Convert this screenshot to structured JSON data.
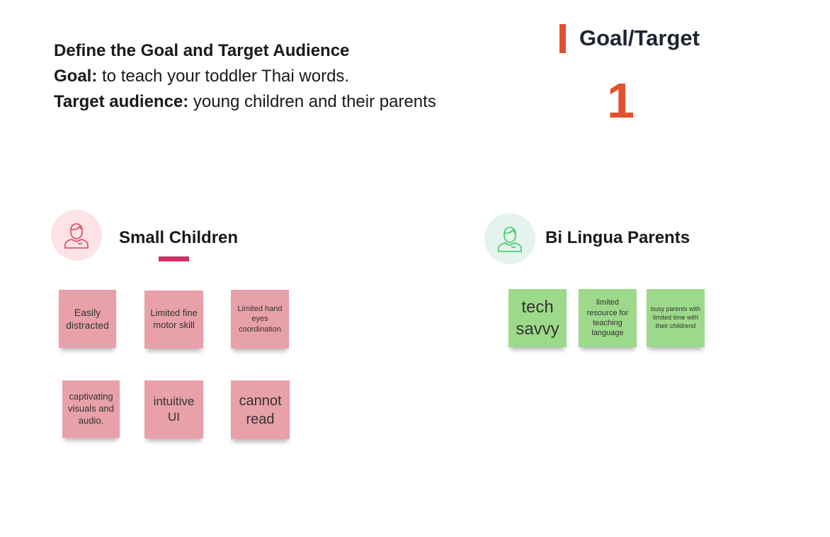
{
  "intro": {
    "heading": "Define the Goal and Target Audience",
    "goal_label": "Goal:",
    "goal_text": " to teach your toddler Thai words.",
    "audience_label": "Target audience:",
    "audience_text": " young children and their parents"
  },
  "section": {
    "title": "Goal/Target",
    "number": "1"
  },
  "groups": {
    "children": {
      "title": "Small Children",
      "notes": [
        "Easily distracted",
        "Limited fine motor skill",
        "Limited hand eyes coordination",
        "captivating visuals and audio.",
        "intuitive UI",
        "cannot read"
      ]
    },
    "parents": {
      "title": "Bi Lingua Parents",
      "notes": [
        "tech savvy",
        "limited resource for teaching language",
        "busy parents with limited time with their childrend"
      ]
    }
  },
  "colors": {
    "accent": "#e0522e",
    "pink_note": "#e8a1a9",
    "green_note": "#9dd98a",
    "magenta": "#d12f66"
  }
}
